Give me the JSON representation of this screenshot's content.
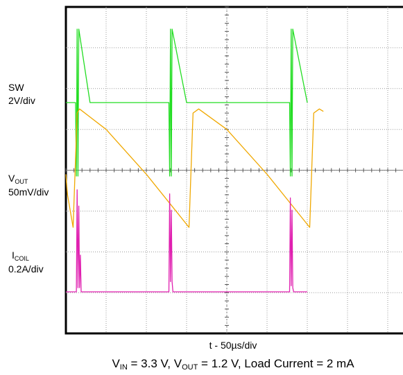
{
  "chart_data": {
    "type": "line",
    "title": "",
    "xlabel": "t - 50µs/div",
    "grid": true,
    "x_divisions": 10,
    "y_divisions": 8,
    "x_unit": "µs",
    "series": [
      {
        "name_main": "SW",
        "name_sub": "",
        "scale": "2V/div",
        "color": "#22dd22",
        "x": [
          0,
          12,
          13,
          14,
          15,
          16,
          30,
          50,
          70,
          90,
          110,
          128,
          129,
          130,
          131,
          132,
          150,
          170,
          190,
          210,
          230,
          250,
          278,
          279,
          280,
          281,
          282,
          300
        ],
        "y": [
          0,
          0,
          -3.6,
          3.6,
          -3.6,
          3.6,
          0,
          0,
          0,
          0,
          0,
          0,
          -3.6,
          3.6,
          -3.6,
          3.6,
          0,
          0,
          0,
          0,
          0,
          0,
          0,
          -3.6,
          3.6,
          -3.6,
          3.6,
          0
        ]
      },
      {
        "name_main": "V",
        "name_sub": "OUT",
        "scale": "50mV/div",
        "color": "#f0a800",
        "x": [
          0,
          2,
          9,
          14,
          17,
          50,
          100,
          153,
          158,
          165,
          200,
          250,
          303,
          308,
          315,
          320
        ],
        "y": [
          20,
          -5,
          -45,
          95,
          100,
          75,
          20,
          -45,
          95,
          100,
          75,
          20,
          -45,
          95,
          100,
          97
        ]
      },
      {
        "name_main": "I",
        "name_sub": "COIL",
        "scale": "0.2A/div",
        "color": "#e020b0",
        "x": [
          0,
          13,
          14,
          15,
          16,
          17,
          18,
          19,
          128,
          129,
          130,
          131,
          132,
          133,
          278,
          279,
          280,
          281,
          282,
          283,
          300
        ],
        "y": [
          0,
          0,
          0.5,
          0.02,
          0.42,
          0.02,
          0.18,
          0,
          0,
          0.48,
          0.05,
          0.4,
          0.05,
          0,
          0,
          0.46,
          0.03,
          0.4,
          0.02,
          0,
          0
        ]
      }
    ]
  },
  "caption": {
    "vin_main": "V",
    "vin_sub": "IN",
    "vin_rest": " = 3.3 V, ",
    "vout_main": "V",
    "vout_sub": "OUT",
    "vout_rest": " = 1.2 V, Load Current = 2 mA"
  }
}
